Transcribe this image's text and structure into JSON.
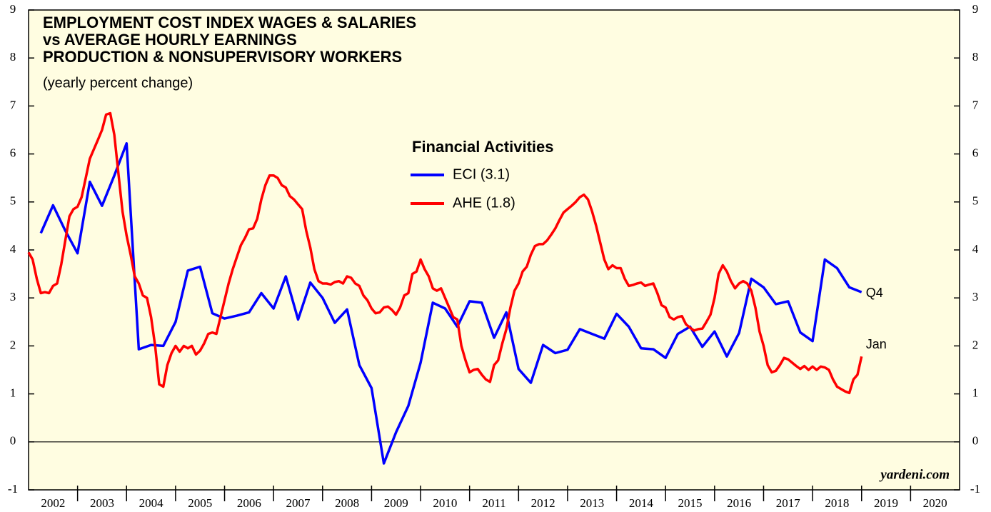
{
  "chart_data": {
    "type": "line",
    "title_lines": [
      "EMPLOYMENT COST INDEX WAGES & SALARIES",
      "vs AVERAGE HOURLY EARNINGS",
      "PRODUCTION & NONSUPERVISORY WORKERS"
    ],
    "subtitle": "(yearly percent change)",
    "legend_title": "Financial Activities",
    "watermark": "yardeni.com",
    "background": "#fffde1",
    "xlim": [
      2002,
      2021
    ],
    "xticks": [
      {
        "value": 2002.5,
        "label": "2002"
      },
      {
        "value": 2003.5,
        "label": "2003"
      },
      {
        "value": 2004.5,
        "label": "2004"
      },
      {
        "value": 2005.5,
        "label": "2005"
      },
      {
        "value": 2006.5,
        "label": "2006"
      },
      {
        "value": 2007.5,
        "label": "2007"
      },
      {
        "value": 2008.5,
        "label": "2008"
      },
      {
        "value": 2009.5,
        "label": "2009"
      },
      {
        "value": 2010.5,
        "label": "2010"
      },
      {
        "value": 2011.5,
        "label": "2011"
      },
      {
        "value": 2012.5,
        "label": "2012"
      },
      {
        "value": 2013.5,
        "label": "2013"
      },
      {
        "value": 2014.5,
        "label": "2014"
      },
      {
        "value": 2015.5,
        "label": "2015"
      },
      {
        "value": 2016.5,
        "label": "2016"
      },
      {
        "value": 2017.5,
        "label": "2017"
      },
      {
        "value": 2018.5,
        "label": "2018"
      },
      {
        "value": 2019.5,
        "label": "2019"
      },
      {
        "value": 2020.5,
        "label": "2020"
      }
    ],
    "ylim": [
      -1,
      9
    ],
    "yticks": [
      -1,
      0,
      1,
      2,
      3,
      4,
      5,
      6,
      7,
      8,
      9
    ],
    "zero_line": true,
    "series": [
      {
        "name": "ECI (3.1)",
        "color": "#0000ff",
        "end_label": "Q4",
        "x": [
          2002.25,
          2002.5,
          2002.75,
          2003.0,
          2003.25,
          2003.5,
          2003.75,
          2004.0,
          2004.25,
          2004.5,
          2004.75,
          2005.0,
          2005.25,
          2005.5,
          2005.75,
          2006.0,
          2006.25,
          2006.5,
          2006.75,
          2007.0,
          2007.25,
          2007.5,
          2007.75,
          2008.0,
          2008.25,
          2008.5,
          2008.75,
          2009.0,
          2009.25,
          2009.5,
          2009.75,
          2010.0,
          2010.25,
          2010.5,
          2010.75,
          2011.0,
          2011.25,
          2011.5,
          2011.75,
          2012.0,
          2012.25,
          2012.5,
          2012.75,
          2013.0,
          2013.25,
          2013.5,
          2013.75,
          2014.0,
          2014.25,
          2014.5,
          2014.75,
          2015.0,
          2015.25,
          2015.5,
          2015.75,
          2016.0,
          2016.25,
          2016.5,
          2016.75,
          2017.0,
          2017.25,
          2017.5,
          2017.75,
          2018.0,
          2018.25,
          2018.5,
          2018.75,
          2019.0
        ],
        "values": [
          4.35,
          4.93,
          4.4,
          3.93,
          5.42,
          4.92,
          5.55,
          6.22,
          1.93,
          2.02,
          2.0,
          2.5,
          3.57,
          3.65,
          2.68,
          2.57,
          2.63,
          2.7,
          3.1,
          2.78,
          3.45,
          2.55,
          3.32,
          3.0,
          2.48,
          2.76,
          1.6,
          1.12,
          -0.45,
          0.2,
          0.75,
          1.65,
          2.9,
          2.78,
          2.4,
          2.93,
          2.9,
          2.17,
          2.7,
          1.52,
          1.23,
          2.02,
          1.85,
          1.92,
          2.35,
          2.25,
          2.15,
          2.67,
          2.4,
          1.95,
          1.93,
          1.75,
          2.25,
          2.4,
          1.98,
          2.3,
          1.78,
          2.27,
          3.4,
          3.22,
          2.87,
          2.93,
          2.28,
          2.1,
          3.8,
          3.62,
          3.22,
          3.12
        ]
      },
      {
        "name": "AHE (1.8)",
        "color": "#ff0000",
        "end_label": "Jan",
        "x": [
          2002.0,
          2002.083,
          2002.167,
          2002.25,
          2002.333,
          2002.417,
          2002.5,
          2002.583,
          2002.667,
          2002.75,
          2002.833,
          2002.917,
          2003.0,
          2003.083,
          2003.167,
          2003.25,
          2003.333,
          2003.417,
          2003.5,
          2003.583,
          2003.667,
          2003.75,
          2003.833,
          2003.917,
          2004.0,
          2004.083,
          2004.167,
          2004.25,
          2004.333,
          2004.417,
          2004.5,
          2004.583,
          2004.667,
          2004.75,
          2004.833,
          2004.917,
          2005.0,
          2005.083,
          2005.167,
          2005.25,
          2005.333,
          2005.417,
          2005.5,
          2005.583,
          2005.667,
          2005.75,
          2005.833,
          2005.917,
          2006.0,
          2006.083,
          2006.167,
          2006.25,
          2006.333,
          2006.417,
          2006.5,
          2006.583,
          2006.667,
          2006.75,
          2006.833,
          2006.917,
          2007.0,
          2007.083,
          2007.167,
          2007.25,
          2007.333,
          2007.417,
          2007.5,
          2007.583,
          2007.667,
          2007.75,
          2007.833,
          2007.917,
          2008.0,
          2008.083,
          2008.167,
          2008.25,
          2008.333,
          2008.417,
          2008.5,
          2008.583,
          2008.667,
          2008.75,
          2008.833,
          2008.917,
          2009.0,
          2009.083,
          2009.167,
          2009.25,
          2009.333,
          2009.417,
          2009.5,
          2009.583,
          2009.667,
          2009.75,
          2009.833,
          2009.917,
          2010.0,
          2010.083,
          2010.167,
          2010.25,
          2010.333,
          2010.417,
          2010.5,
          2010.583,
          2010.667,
          2010.75,
          2010.833,
          2010.917,
          2011.0,
          2011.083,
          2011.167,
          2011.25,
          2011.333,
          2011.417,
          2011.5,
          2011.583,
          2011.667,
          2011.75,
          2011.833,
          2011.917,
          2012.0,
          2012.083,
          2012.167,
          2012.25,
          2012.333,
          2012.417,
          2012.5,
          2012.583,
          2012.667,
          2012.75,
          2012.833,
          2012.917,
          2013.0,
          2013.083,
          2013.167,
          2013.25,
          2013.333,
          2013.417,
          2013.5,
          2013.583,
          2013.667,
          2013.75,
          2013.833,
          2013.917,
          2014.0,
          2014.083,
          2014.167,
          2014.25,
          2014.333,
          2014.417,
          2014.5,
          2014.583,
          2014.667,
          2014.75,
          2014.833,
          2014.917,
          2015.0,
          2015.083,
          2015.167,
          2015.25,
          2015.333,
          2015.417,
          2015.5,
          2015.583,
          2015.667,
          2015.75,
          2015.833,
          2015.917,
          2016.0,
          2016.083,
          2016.167,
          2016.25,
          2016.333,
          2016.417,
          2016.5,
          2016.583,
          2016.667,
          2016.75,
          2016.833,
          2016.917,
          2017.0,
          2017.083,
          2017.167,
          2017.25,
          2017.333,
          2017.417,
          2017.5,
          2017.583,
          2017.667,
          2017.75,
          2017.833,
          2017.917,
          2018.0,
          2018.083,
          2018.167,
          2018.25,
          2018.333,
          2018.417,
          2018.5,
          2018.583,
          2018.667,
          2018.75,
          2018.833,
          2018.917,
          2019.0
        ],
        "values": [
          3.95,
          3.8,
          3.4,
          3.1,
          3.12,
          3.1,
          3.25,
          3.3,
          3.7,
          4.2,
          4.7,
          4.85,
          4.9,
          5.1,
          5.5,
          5.9,
          6.1,
          6.3,
          6.5,
          6.82,
          6.85,
          6.4,
          5.6,
          4.8,
          4.3,
          3.9,
          3.45,
          3.3,
          3.05,
          3.0,
          2.6,
          2.0,
          1.2,
          1.15,
          1.6,
          1.85,
          2.0,
          1.88,
          2.0,
          1.95,
          2.0,
          1.82,
          1.9,
          2.05,
          2.25,
          2.28,
          2.25,
          2.6,
          2.95,
          3.3,
          3.6,
          3.85,
          4.1,
          4.25,
          4.43,
          4.45,
          4.65,
          5.05,
          5.35,
          5.55,
          5.55,
          5.5,
          5.35,
          5.3,
          5.12,
          5.05,
          4.95,
          4.85,
          4.4,
          4.05,
          3.6,
          3.35,
          3.3,
          3.3,
          3.28,
          3.33,
          3.35,
          3.3,
          3.45,
          3.42,
          3.3,
          3.25,
          3.05,
          2.95,
          2.78,
          2.68,
          2.7,
          2.8,
          2.82,
          2.75,
          2.65,
          2.8,
          3.05,
          3.1,
          3.5,
          3.55,
          3.8,
          3.6,
          3.45,
          3.2,
          3.15,
          3.2,
          3.0,
          2.8,
          2.6,
          2.55,
          2.0,
          1.7,
          1.45,
          1.5,
          1.52,
          1.4,
          1.3,
          1.25,
          1.6,
          1.7,
          2.05,
          2.35,
          2.8,
          3.15,
          3.3,
          3.55,
          3.65,
          3.9,
          4.08,
          4.12,
          4.12,
          4.2,
          4.32,
          4.45,
          4.62,
          4.78,
          4.85,
          4.92,
          5.0,
          5.1,
          5.15,
          5.05,
          4.8,
          4.5,
          4.15,
          3.8,
          3.6,
          3.68,
          3.62,
          3.62,
          3.4,
          3.25,
          3.27,
          3.3,
          3.32,
          3.25,
          3.28,
          3.3,
          3.1,
          2.85,
          2.8,
          2.6,
          2.55,
          2.6,
          2.62,
          2.45,
          2.38,
          2.32,
          2.35,
          2.36,
          2.5,
          2.65,
          3.0,
          3.5,
          3.68,
          3.55,
          3.35,
          3.2,
          3.3,
          3.35,
          3.3,
          3.15,
          2.8,
          2.3,
          2.0,
          1.6,
          1.45,
          1.48,
          1.6,
          1.75,
          1.72,
          1.65,
          1.58,
          1.52,
          1.58,
          1.5,
          1.57,
          1.5,
          1.57,
          1.55,
          1.5,
          1.3,
          1.15,
          1.1,
          1.05,
          1.02,
          1.3,
          1.4,
          1.78
        ]
      }
    ]
  }
}
